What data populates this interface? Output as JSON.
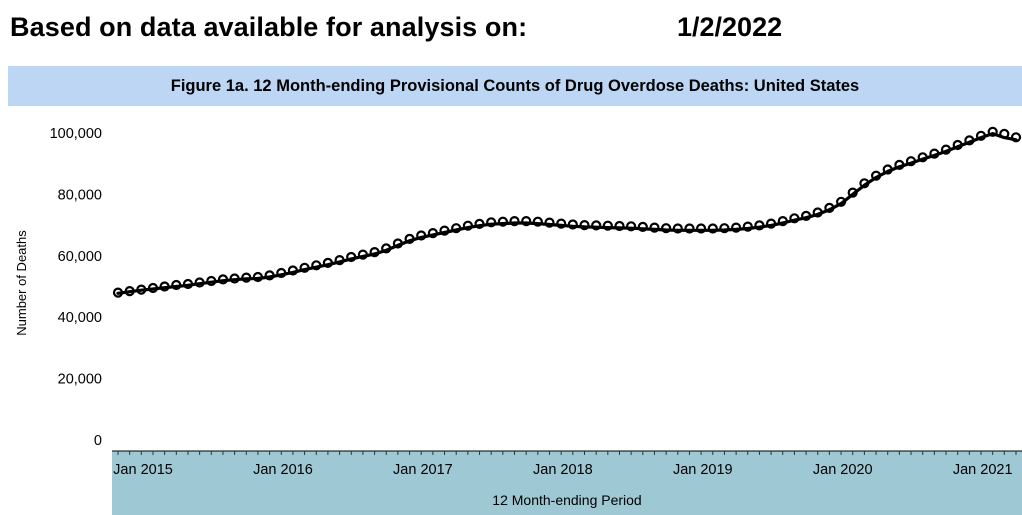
{
  "header": {
    "label": "Based on data available for analysis on:",
    "date": "1/2/2022"
  },
  "chart_data": {
    "type": "line",
    "title": "Figure 1a. 12 Month-ending Provisional Counts of Drug Overdose Deaths: United States",
    "xlabel": "12 Month-ending Period",
    "ylabel": "Number of Deaths",
    "ylim": [
      0,
      100000
    ],
    "y_ticks": [
      0,
      20000,
      40000,
      60000,
      80000,
      100000
    ],
    "y_tick_labels": [
      "0",
      "20,000",
      "40,000",
      "60,000",
      "80,000",
      "100,000"
    ],
    "x_tick_labels": [
      "Jan 2015",
      "Jan 2016",
      "Jan 2017",
      "Jan 2018",
      "Jan 2019",
      "Jan 2020",
      "Jan 2021"
    ],
    "x_range": [
      "Jan 2015",
      "Jun 2021"
    ],
    "grid": false,
    "colors": {
      "title_band": "#bcd6f4",
      "x_axis_band": "#9ec8d3",
      "series": "#000000"
    },
    "series": [
      {
        "marker": "line",
        "x": [
          "2015-01",
          "2015-02",
          "2015-03",
          "2015-04",
          "2015-05",
          "2015-06",
          "2015-07",
          "2015-08",
          "2015-09",
          "2015-10",
          "2015-11",
          "2015-12",
          "2016-01",
          "2016-02",
          "2016-03",
          "2016-04",
          "2016-05",
          "2016-06",
          "2016-07",
          "2016-08",
          "2016-09",
          "2016-10",
          "2016-11",
          "2016-12",
          "2017-01",
          "2017-02",
          "2017-03",
          "2017-04",
          "2017-05",
          "2017-06",
          "2017-07",
          "2017-08",
          "2017-09",
          "2017-10",
          "2017-11",
          "2017-12",
          "2018-01",
          "2018-02",
          "2018-03",
          "2018-04",
          "2018-05",
          "2018-06",
          "2018-07",
          "2018-08",
          "2018-09",
          "2018-10",
          "2018-11",
          "2018-12",
          "2019-01",
          "2019-02",
          "2019-03",
          "2019-04",
          "2019-05",
          "2019-06",
          "2019-07",
          "2019-08",
          "2019-09",
          "2019-10",
          "2019-11",
          "2019-12",
          "2020-01",
          "2020-02",
          "2020-03",
          "2020-04",
          "2020-05",
          "2020-06",
          "2020-07",
          "2020-08",
          "2020-09",
          "2020-10",
          "2020-11",
          "2020-12",
          "2021-01",
          "2021-02",
          "2021-03",
          "2021-04",
          "2021-05",
          "2021-06"
        ],
        "values": [
          47800,
          48300,
          48800,
          49200,
          49600,
          50000,
          50400,
          50900,
          51400,
          51900,
          52200,
          52500,
          52600,
          53100,
          53800,
          54600,
          55500,
          56300,
          57100,
          58000,
          59000,
          59800,
          60600,
          61800,
          63400,
          64900,
          66000,
          66800,
          67600,
          68400,
          69200,
          69800,
          70300,
          70500,
          70700,
          70700,
          70500,
          70200,
          69900,
          69600,
          69400,
          69300,
          69200,
          69100,
          69000,
          68800,
          68600,
          68400,
          68300,
          68300,
          68300,
          68300,
          68400,
          68600,
          68900,
          69300,
          69900,
          70700,
          71600,
          72400,
          73500,
          75000,
          77000,
          80000,
          83000,
          85500,
          87500,
          89000,
          90200,
          91500,
          92700,
          94000,
          95500,
          97000,
          98500,
          99800,
          98500,
          97800
        ]
      },
      {
        "marker": "open-circle",
        "x": [
          "2015-01",
          "2015-02",
          "2015-03",
          "2015-04",
          "2015-05",
          "2015-06",
          "2015-07",
          "2015-08",
          "2015-09",
          "2015-10",
          "2015-11",
          "2015-12",
          "2016-01",
          "2016-02",
          "2016-03",
          "2016-04",
          "2016-05",
          "2016-06",
          "2016-07",
          "2016-08",
          "2016-09",
          "2016-10",
          "2016-11",
          "2016-12",
          "2017-01",
          "2017-02",
          "2017-03",
          "2017-04",
          "2017-05",
          "2017-06",
          "2017-07",
          "2017-08",
          "2017-09",
          "2017-10",
          "2017-11",
          "2017-12",
          "2018-01",
          "2018-02",
          "2018-03",
          "2018-04",
          "2018-05",
          "2018-06",
          "2018-07",
          "2018-08",
          "2018-09",
          "2018-10",
          "2018-11",
          "2018-12",
          "2019-01",
          "2019-02",
          "2019-03",
          "2019-04",
          "2019-05",
          "2019-06",
          "2019-07",
          "2019-08",
          "2019-09",
          "2019-10",
          "2019-11",
          "2019-12",
          "2020-01",
          "2020-02",
          "2020-03",
          "2020-04",
          "2020-05",
          "2020-06",
          "2020-07",
          "2020-08",
          "2020-09",
          "2020-10",
          "2020-11",
          "2020-12",
          "2021-01",
          "2021-02",
          "2021-03",
          "2021-04",
          "2021-05",
          "2021-06"
        ],
        "values": [
          48000,
          48500,
          49000,
          49500,
          50000,
          50500,
          50800,
          51300,
          51800,
          52300,
          52600,
          52900,
          53100,
          53600,
          54400,
          55200,
          56100,
          56900,
          57700,
          58600,
          59600,
          60400,
          61200,
          62400,
          64000,
          65500,
          66600,
          67400,
          68200,
          69000,
          69800,
          70400,
          70900,
          71100,
          71300,
          71300,
          71100,
          70800,
          70500,
          70200,
          70000,
          69900,
          69800,
          69700,
          69600,
          69400,
          69200,
          69000,
          68900,
          68900,
          68900,
          68900,
          69000,
          69200,
          69500,
          69900,
          70500,
          71300,
          72200,
          73000,
          74100,
          75600,
          77600,
          80600,
          83600,
          86100,
          88100,
          89600,
          90800,
          92100,
          93300,
          94600,
          96100,
          97600,
          99100,
          100400,
          99700,
          98600
        ]
      }
    ]
  }
}
